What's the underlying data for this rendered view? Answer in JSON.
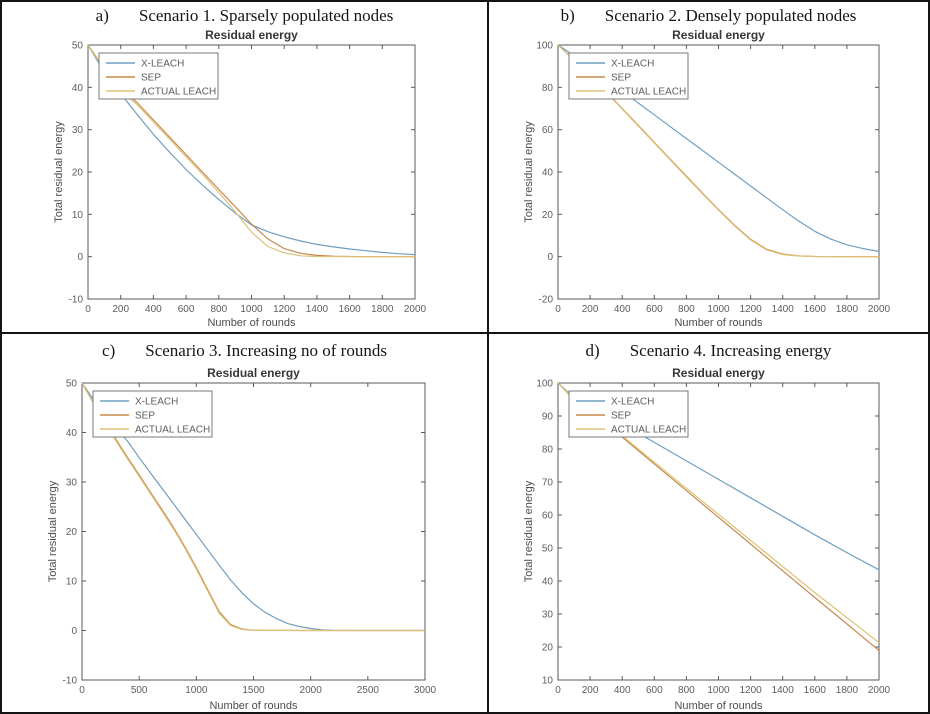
{
  "figure": {
    "background": "#ffffff",
    "border_color": "#141414"
  },
  "legend": {
    "position": "top-left-inside",
    "entries": [
      {
        "label": "X-LEACH",
        "color": "#6f9fc0"
      },
      {
        "label": "SEP",
        "color": "#c8894e"
      },
      {
        "label": "ACTUAL LEACH",
        "color": "#ddc279"
      }
    ]
  },
  "chart_data": [
    {
      "type": "line",
      "letter": "a)",
      "caption": "Scenario 1. Sparsely populated nodes",
      "title": "Residual energy",
      "xlabel": "Number of rounds",
      "ylabel": "Total residual energy",
      "xlim": [
        0,
        2000
      ],
      "ylim": [
        -10,
        50
      ],
      "xticks": [
        0,
        200,
        400,
        600,
        800,
        1000,
        1200,
        1400,
        1600,
        1800,
        2000
      ],
      "yticks": [
        -10,
        0,
        10,
        20,
        30,
        40,
        50
      ],
      "grid": false,
      "series": [
        {
          "name": "X-LEACH",
          "points": [
            [
              0,
              50
            ],
            [
              100,
              43.5
            ],
            [
              200,
              38.5
            ],
            [
              300,
              33.6
            ],
            [
              400,
              28.9
            ],
            [
              500,
              24.6
            ],
            [
              600,
              20.6
            ],
            [
              700,
              16.9
            ],
            [
              800,
              13.5
            ],
            [
              900,
              10.3
            ],
            [
              1000,
              7.5
            ],
            [
              1100,
              5.9
            ],
            [
              1200,
              4.7
            ],
            [
              1300,
              3.7
            ],
            [
              1400,
              2.9
            ],
            [
              1500,
              2.3
            ],
            [
              1600,
              1.8
            ],
            [
              1700,
              1.4
            ],
            [
              1800,
              1.0
            ],
            [
              1900,
              0.7
            ],
            [
              2000,
              0.5
            ]
          ]
        },
        {
          "name": "SEP",
          "points": [
            [
              0,
              50
            ],
            [
              100,
              44.5
            ],
            [
              200,
              39.7
            ],
            [
              250,
              38.0
            ],
            [
              300,
              36.4
            ],
            [
              400,
              32.3
            ],
            [
              500,
              28.2
            ],
            [
              600,
              24.1
            ],
            [
              700,
              20.0
            ],
            [
              800,
              15.9
            ],
            [
              900,
              11.8
            ],
            [
              1000,
              7.7
            ],
            [
              1100,
              4.2
            ],
            [
              1200,
              1.9
            ],
            [
              1300,
              0.8
            ],
            [
              1400,
              0.3
            ],
            [
              1500,
              0.1
            ],
            [
              1700,
              0
            ],
            [
              2000,
              0
            ]
          ]
        },
        {
          "name": "ACTUAL LEACH",
          "points": [
            [
              0,
              50
            ],
            [
              100,
              44.2
            ],
            [
              200,
              39.3
            ],
            [
              250,
              37.6
            ],
            [
              300,
              35.9
            ],
            [
              400,
              31.8
            ],
            [
              500,
              27.7
            ],
            [
              600,
              23.6
            ],
            [
              700,
              19.5
            ],
            [
              800,
              15.2
            ],
            [
              900,
              10.6
            ],
            [
              1000,
              5.8
            ],
            [
              1100,
              2.4
            ],
            [
              1200,
              0.9
            ],
            [
              1300,
              0.2
            ],
            [
              1400,
              0.05
            ],
            [
              1600,
              0
            ],
            [
              2000,
              0
            ]
          ]
        }
      ]
    },
    {
      "type": "line",
      "letter": "b)",
      "caption": "Scenario 2. Densely populated nodes",
      "title": "Residual energy",
      "xlabel": "Number of rounds",
      "ylabel": "Total residual energy",
      "xlim": [
        0,
        2000
      ],
      "ylim": [
        -20,
        100
      ],
      "xticks": [
        0,
        200,
        400,
        600,
        800,
        1000,
        1200,
        1400,
        1600,
        1800,
        2000
      ],
      "yticks": [
        -20,
        0,
        20,
        40,
        60,
        80,
        100
      ],
      "grid": false,
      "series": [
        {
          "name": "X-LEACH",
          "points": [
            [
              0,
              100
            ],
            [
              100,
              95
            ],
            [
              200,
              89.4
            ],
            [
              300,
              83.8
            ],
            [
              400,
              78.2
            ],
            [
              500,
              72.6
            ],
            [
              600,
              67.0
            ],
            [
              700,
              61.4
            ],
            [
              800,
              55.8
            ],
            [
              900,
              50.2
            ],
            [
              1000,
              44.6
            ],
            [
              1100,
              39.0
            ],
            [
              1200,
              33.4
            ],
            [
              1300,
              27.8
            ],
            [
              1400,
              22.2
            ],
            [
              1500,
              16.8
            ],
            [
              1600,
              12.0
            ],
            [
              1700,
              8.3
            ],
            [
              1800,
              5.6
            ],
            [
              1900,
              3.8
            ],
            [
              2000,
              2.5
            ]
          ]
        },
        {
          "name": "SEP",
          "points": [
            [
              0,
              100
            ],
            [
              100,
              93
            ],
            [
              200,
              85.5
            ],
            [
              300,
              78.0
            ],
            [
              400,
              70.0
            ],
            [
              500,
              62.0
            ],
            [
              600,
              54.0
            ],
            [
              700,
              46.0
            ],
            [
              800,
              38.0
            ],
            [
              900,
              30.0
            ],
            [
              1000,
              22.3
            ],
            [
              1100,
              14.8
            ],
            [
              1200,
              8.2
            ],
            [
              1300,
              3.5
            ],
            [
              1400,
              1.2
            ],
            [
              1500,
              0.4
            ],
            [
              1600,
              0.1
            ],
            [
              1800,
              0
            ],
            [
              2000,
              0
            ]
          ]
        },
        {
          "name": "ACTUAL LEACH",
          "points": [
            [
              0,
              100
            ],
            [
              100,
              92.8
            ],
            [
              200,
              85.2
            ],
            [
              300,
              77.7
            ],
            [
              400,
              69.7
            ],
            [
              500,
              61.7
            ],
            [
              600,
              53.7
            ],
            [
              700,
              45.7
            ],
            [
              800,
              37.7
            ],
            [
              900,
              29.7
            ],
            [
              1000,
              22.0
            ],
            [
              1100,
              14.5
            ],
            [
              1200,
              7.9
            ],
            [
              1300,
              3.2
            ],
            [
              1400,
              1.0
            ],
            [
              1500,
              0.3
            ],
            [
              1600,
              0.1
            ],
            [
              1800,
              0
            ],
            [
              2000,
              0
            ]
          ]
        }
      ]
    },
    {
      "type": "line",
      "letter": "c)",
      "caption": "Scenario 3. Increasing no of rounds",
      "title": "Residual energy",
      "xlabel": "Number of rounds",
      "ylabel": "Total residual energy",
      "xlim": [
        0,
        3000
      ],
      "ylim": [
        -10,
        50
      ],
      "xticks": [
        0,
        500,
        1000,
        1500,
        2000,
        2500,
        3000
      ],
      "yticks": [
        -10,
        0,
        10,
        20,
        30,
        40,
        50
      ],
      "grid": false,
      "series": [
        {
          "name": "X-LEACH",
          "points": [
            [
              0,
              50
            ],
            [
              150,
              45.0
            ],
            [
              300,
              41.0
            ],
            [
              400,
              38.2
            ],
            [
              500,
              34.9
            ],
            [
              600,
              31.8
            ],
            [
              700,
              28.7
            ],
            [
              800,
              25.6
            ],
            [
              900,
              22.5
            ],
            [
              1000,
              19.4
            ],
            [
              1100,
              16.3
            ],
            [
              1200,
              13.2
            ],
            [
              1300,
              10.2
            ],
            [
              1400,
              7.6
            ],
            [
              1500,
              5.4
            ],
            [
              1600,
              3.7
            ],
            [
              1700,
              2.4
            ],
            [
              1800,
              1.4
            ],
            [
              1900,
              0.8
            ],
            [
              2000,
              0.4
            ],
            [
              2100,
              0.15
            ],
            [
              2200,
              0.05
            ],
            [
              2500,
              0
            ],
            [
              3000,
              0
            ]
          ]
        },
        {
          "name": "SEP",
          "points": [
            [
              0,
              50
            ],
            [
              150,
              44.0
            ],
            [
              300,
              38.5
            ],
            [
              400,
              34.9
            ],
            [
              500,
              31.4
            ],
            [
              600,
              27.9
            ],
            [
              700,
              24.4
            ],
            [
              800,
              20.8
            ],
            [
              900,
              16.9
            ],
            [
              1000,
              12.7
            ],
            [
              1100,
              8.2
            ],
            [
              1200,
              3.8
            ],
            [
              1300,
              1.2
            ],
            [
              1400,
              0.3
            ],
            [
              1500,
              0.05
            ],
            [
              2000,
              0
            ],
            [
              3000,
              0
            ]
          ]
        },
        {
          "name": "ACTUAL LEACH",
          "points": [
            [
              0,
              50
            ],
            [
              150,
              43.8
            ],
            [
              300,
              38.2
            ],
            [
              400,
              34.6
            ],
            [
              500,
              31.1
            ],
            [
              600,
              27.6
            ],
            [
              700,
              24.1
            ],
            [
              800,
              20.5
            ],
            [
              900,
              16.6
            ],
            [
              1000,
              12.4
            ],
            [
              1100,
              7.9
            ],
            [
              1200,
              3.5
            ],
            [
              1300,
              1.0
            ],
            [
              1400,
              0.2
            ],
            [
              1500,
              0.02
            ],
            [
              2000,
              0
            ],
            [
              3000,
              0
            ]
          ]
        }
      ]
    },
    {
      "type": "line",
      "letter": "d)",
      "caption": "Scenario 4. Increasing energy",
      "title": "Residual energy",
      "xlabel": "Number of rounds",
      "ylabel": "Total residual energy",
      "xlim": [
        0,
        2000
      ],
      "ylim": [
        10,
        100
      ],
      "xticks": [
        0,
        200,
        400,
        600,
        800,
        1000,
        1200,
        1400,
        1600,
        1800,
        2000
      ],
      "yticks": [
        10,
        20,
        30,
        40,
        50,
        60,
        70,
        80,
        90,
        100
      ],
      "grid": false,
      "series": [
        {
          "name": "X-LEACH",
          "points": [
            [
              0,
              100
            ],
            [
              80,
              96.5
            ],
            [
              200,
              93.2
            ],
            [
              400,
              87.6
            ],
            [
              600,
              82.0
            ],
            [
              800,
              76.4
            ],
            [
              1000,
              70.8
            ],
            [
              1200,
              65.2
            ],
            [
              1400,
              59.6
            ],
            [
              1600,
              54.0
            ],
            [
              1800,
              48.6
            ],
            [
              2000,
              43.4
            ]
          ]
        },
        {
          "name": "SEP",
          "points": [
            [
              0,
              100
            ],
            [
              80,
              96.0
            ],
            [
              200,
              91.6
            ],
            [
              400,
              83.6
            ],
            [
              600,
              75.5
            ],
            [
              800,
              67.4
            ],
            [
              1000,
              59.3
            ],
            [
              1200,
              51.2
            ],
            [
              1400,
              43.1
            ],
            [
              1600,
              35.0
            ],
            [
              1800,
              27.0
            ],
            [
              2000,
              18.9
            ]
          ]
        },
        {
          "name": "ACTUAL LEACH",
          "points": [
            [
              0,
              100
            ],
            [
              80,
              96.2
            ],
            [
              200,
              91.9
            ],
            [
              400,
              84.0
            ],
            [
              600,
              76.0
            ],
            [
              800,
              68.1
            ],
            [
              1000,
              60.2
            ],
            [
              1200,
              52.3
            ],
            [
              1400,
              44.4
            ],
            [
              1600,
              36.5
            ],
            [
              1800,
              28.9
            ],
            [
              2000,
              21.3
            ]
          ]
        }
      ]
    }
  ]
}
